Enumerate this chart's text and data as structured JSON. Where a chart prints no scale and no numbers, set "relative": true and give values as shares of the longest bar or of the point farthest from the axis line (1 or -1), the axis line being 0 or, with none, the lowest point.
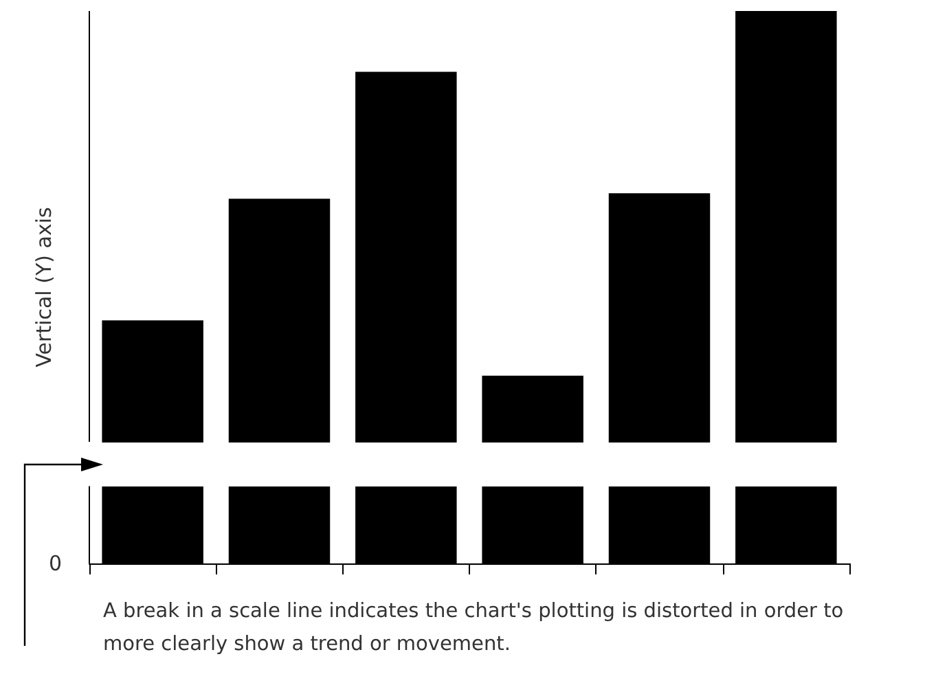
{
  "chart_data": {
    "type": "bar",
    "relative": true,
    "ylabel": "Vertical (Y) axis",
    "categories": [
      null,
      null,
      null,
      null,
      null,
      null
    ],
    "values": [
      0.44,
      0.66,
      0.89,
      0.34,
      0.67,
      1
    ],
    "color": "#000000",
    "annotations": [
      "0",
      "A break in a scale line indicates the chart's plotting is distorted in order to more clearly show a trend or movement."
    ]
  }
}
